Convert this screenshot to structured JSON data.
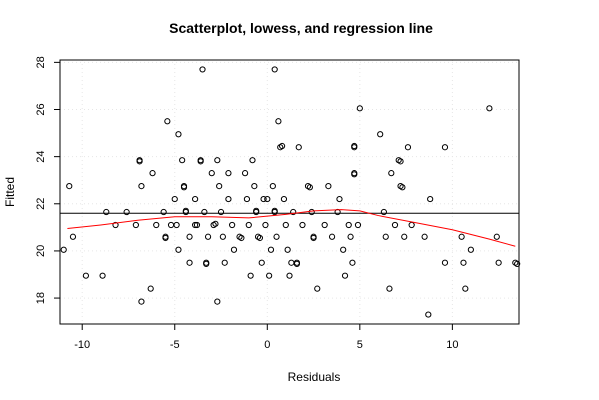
{
  "chart_data": {
    "type": "scatter",
    "title": "Scatterplot, lowess, and regression line",
    "xlabel": "Residuals",
    "ylabel": "Fitted",
    "xlim": [
      -11.2,
      13.6
    ],
    "ylim": [
      16.9,
      28.1
    ],
    "xticks": [
      -10,
      -5,
      0,
      5,
      10
    ],
    "yticks": [
      18,
      20,
      22,
      24,
      26,
      28
    ],
    "grid": true,
    "regression_line": {
      "y": 21.6
    },
    "lowess": {
      "color": "#ff0000",
      "x": [
        -10.8,
        -9,
        -7,
        -5,
        -3,
        -1,
        1,
        2.5,
        4,
        5,
        6,
        8,
        10,
        12,
        13.4
      ],
      "y": [
        20.95,
        21.1,
        21.3,
        21.45,
        21.45,
        21.4,
        21.55,
        21.7,
        21.75,
        21.7,
        21.5,
        21.2,
        20.9,
        20.5,
        20.2
      ]
    },
    "points": [
      [
        -10.7,
        22.75
      ],
      [
        -10.5,
        20.6
      ],
      [
        -11.0,
        20.05
      ],
      [
        -9.8,
        18.95
      ],
      [
        -8.9,
        18.95
      ],
      [
        -8.7,
        21.65
      ],
      [
        -8.2,
        21.1
      ],
      [
        -7.6,
        21.65
      ],
      [
        -7.1,
        21.1
      ],
      [
        -6.9,
        23.85
      ],
      [
        -6.9,
        23.8
      ],
      [
        -6.8,
        22.75
      ],
      [
        -6.8,
        17.85
      ],
      [
        -6.3,
        18.4
      ],
      [
        -6.2,
        23.3
      ],
      [
        -6.0,
        21.1
      ],
      [
        -5.6,
        21.65
      ],
      [
        -5.5,
        20.6
      ],
      [
        -5.5,
        20.55
      ],
      [
        -5.4,
        25.5
      ],
      [
        -5.2,
        21.1
      ],
      [
        -5.0,
        22.2
      ],
      [
        -4.9,
        21.1
      ],
      [
        -4.8,
        20.05
      ],
      [
        -4.8,
        24.95
      ],
      [
        -4.6,
        23.85
      ],
      [
        -4.5,
        22.75
      ],
      [
        -4.5,
        22.7
      ],
      [
        -4.4,
        21.65
      ],
      [
        -4.4,
        21.7
      ],
      [
        -4.2,
        19.5
      ],
      [
        -4.2,
        20.6
      ],
      [
        -3.9,
        21.1
      ],
      [
        -3.9,
        22.2
      ],
      [
        -3.8,
        21.1
      ],
      [
        -3.6,
        23.85
      ],
      [
        -3.6,
        23.8
      ],
      [
        -3.5,
        27.7
      ],
      [
        -3.4,
        21.65
      ],
      [
        -3.3,
        19.5
      ],
      [
        -3.3,
        19.45
      ],
      [
        -3.2,
        20.6
      ],
      [
        -3.0,
        23.3
      ],
      [
        -2.9,
        21.1
      ],
      [
        -2.8,
        21.15
      ],
      [
        -2.7,
        17.85
      ],
      [
        -2.7,
        23.85
      ],
      [
        -2.6,
        22.75
      ],
      [
        -2.5,
        21.65
      ],
      [
        -2.4,
        20.6
      ],
      [
        -2.3,
        19.5
      ],
      [
        -2.1,
        22.2
      ],
      [
        -2.1,
        23.3
      ],
      [
        -1.9,
        21.1
      ],
      [
        -1.8,
        20.05
      ],
      [
        -1.5,
        20.6
      ],
      [
        -1.4,
        20.55
      ],
      [
        -1.2,
        23.3
      ],
      [
        -1.1,
        22.2
      ],
      [
        -1.0,
        21.1
      ],
      [
        -0.9,
        18.95
      ],
      [
        -0.8,
        23.85
      ],
      [
        -0.7,
        22.75
      ],
      [
        -0.6,
        21.65
      ],
      [
        -0.6,
        21.7
      ],
      [
        -0.5,
        20.6
      ],
      [
        -0.4,
        20.55
      ],
      [
        -0.3,
        19.5
      ],
      [
        -0.2,
        22.2
      ],
      [
        -0.1,
        21.1
      ],
      [
        0.0,
        22.2
      ],
      [
        0.1,
        18.95
      ],
      [
        0.2,
        20.05
      ],
      [
        0.3,
        22.75
      ],
      [
        0.4,
        21.65
      ],
      [
        0.4,
        21.7
      ],
      [
        0.4,
        27.7
      ],
      [
        0.5,
        20.6
      ],
      [
        0.6,
        25.5
      ],
      [
        0.7,
        24.4
      ],
      [
        0.8,
        24.45
      ],
      [
        0.9,
        22.2
      ],
      [
        1.0,
        21.1
      ],
      [
        1.1,
        20.05
      ],
      [
        1.2,
        18.95
      ],
      [
        1.3,
        19.5
      ],
      [
        1.4,
        21.65
      ],
      [
        1.6,
        19.5
      ],
      [
        1.6,
        19.45
      ],
      [
        1.7,
        24.4
      ],
      [
        1.9,
        21.1
      ],
      [
        2.2,
        22.75
      ],
      [
        2.3,
        22.7
      ],
      [
        2.4,
        21.65
      ],
      [
        2.5,
        20.6
      ],
      [
        2.5,
        20.55
      ],
      [
        2.7,
        18.4
      ],
      [
        3.1,
        21.1
      ],
      [
        3.3,
        22.75
      ],
      [
        3.5,
        20.6
      ],
      [
        3.8,
        21.65
      ],
      [
        3.9,
        22.2
      ],
      [
        4.1,
        20.05
      ],
      [
        4.2,
        18.95
      ],
      [
        4.4,
        21.1
      ],
      [
        4.5,
        20.6
      ],
      [
        4.6,
        19.5
      ],
      [
        4.7,
        24.4
      ],
      [
        4.7,
        24.45
      ],
      [
        4.7,
        23.3
      ],
      [
        4.7,
        23.25
      ],
      [
        4.9,
        21.1
      ],
      [
        5.0,
        26.05
      ],
      [
        6.1,
        24.95
      ],
      [
        6.3,
        21.65
      ],
      [
        6.4,
        20.6
      ],
      [
        6.6,
        18.4
      ],
      [
        6.7,
        23.3
      ],
      [
        6.9,
        21.1
      ],
      [
        7.1,
        23.85
      ],
      [
        7.2,
        23.8
      ],
      [
        7.2,
        22.75
      ],
      [
        7.3,
        22.7
      ],
      [
        7.4,
        20.6
      ],
      [
        7.6,
        24.4
      ],
      [
        7.8,
        21.1
      ],
      [
        8.5,
        20.6
      ],
      [
        8.7,
        17.3
      ],
      [
        8.8,
        22.2
      ],
      [
        9.6,
        24.4
      ],
      [
        9.6,
        19.5
      ],
      [
        10.5,
        20.6
      ],
      [
        10.6,
        19.5
      ],
      [
        10.7,
        18.4
      ],
      [
        11.0,
        20.05
      ],
      [
        12.0,
        26.05
      ],
      [
        12.4,
        20.6
      ],
      [
        12.5,
        19.5
      ],
      [
        13.4,
        19.5
      ],
      [
        13.5,
        19.45
      ]
    ]
  }
}
